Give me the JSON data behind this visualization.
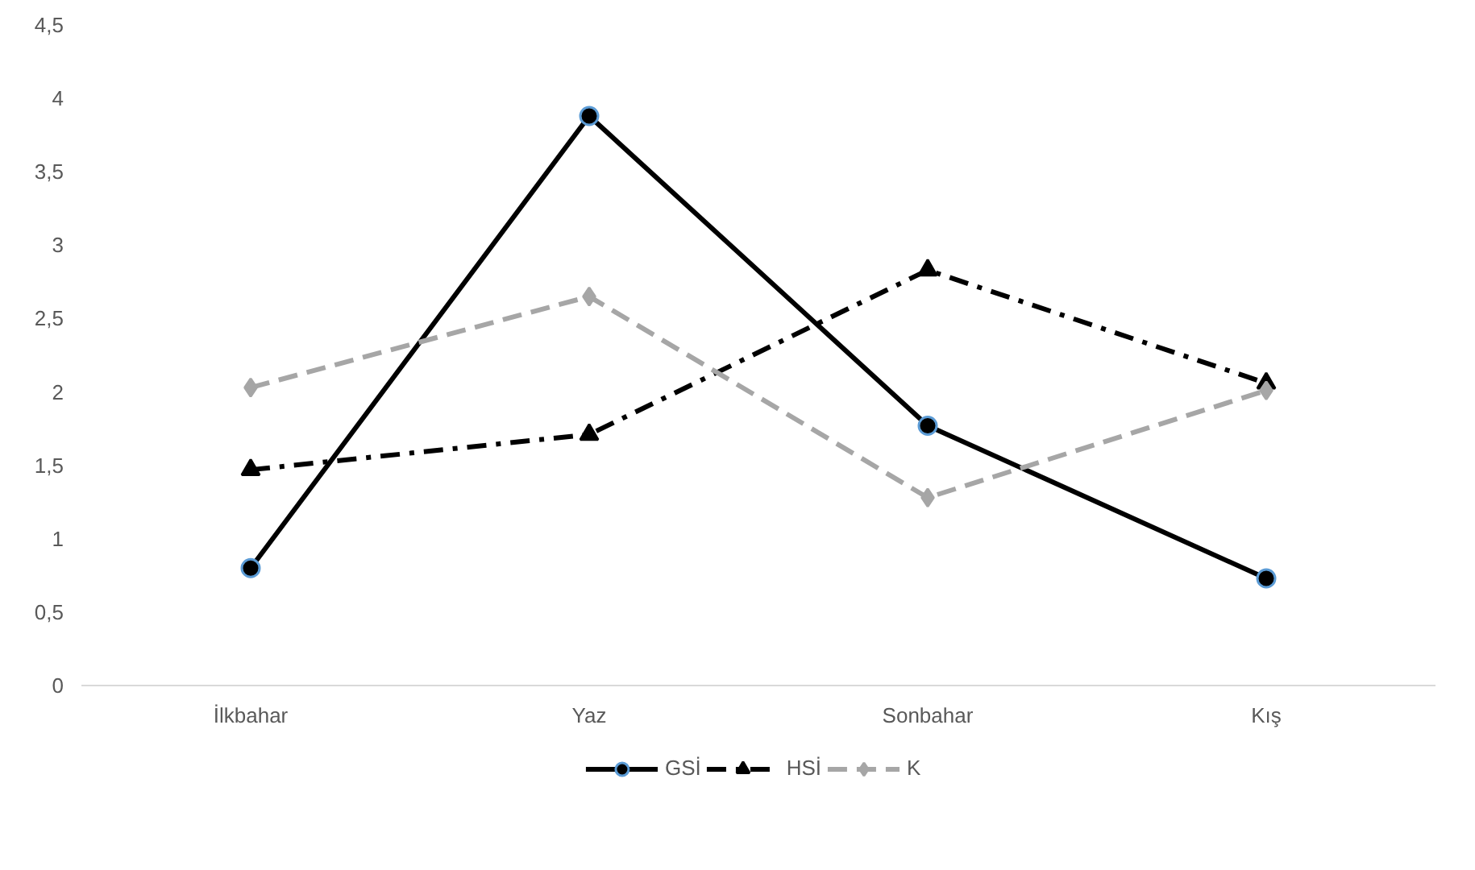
{
  "chart_data": {
    "type": "line",
    "categories": [
      "İlkbahar",
      "Yaz",
      "Sonbahar",
      "Kış"
    ],
    "series": [
      {
        "name": "GSİ",
        "color": "#000000",
        "values": [
          0.8,
          3.88,
          1.77,
          0.73
        ],
        "marker": "circle",
        "line_style": "solid"
      },
      {
        "name": "HSİ",
        "color": "#000000",
        "values": [
          1.47,
          1.71,
          2.83,
          2.06
        ],
        "marker": "triangle",
        "line_style": "dashdot"
      },
      {
        "name": "K",
        "color": "#a6a6a6",
        "values": [
          2.03,
          2.65,
          1.28,
          2.01
        ],
        "marker": "diamond",
        "line_style": "dashed"
      }
    ],
    "ylim": [
      0,
      4.5
    ],
    "yticks": [
      0,
      {
        "value": 0.5,
        "label": "0,5"
      },
      1,
      {
        "value": 1.5,
        "label": "1,5"
      },
      2,
      {
        "value": 2.5,
        "label": "2,5"
      },
      3,
      {
        "value": 3.5,
        "label": "3,5"
      },
      4,
      {
        "value": 4.5,
        "label": "4,5"
      }
    ],
    "grid": false,
    "legend": "bottom"
  }
}
